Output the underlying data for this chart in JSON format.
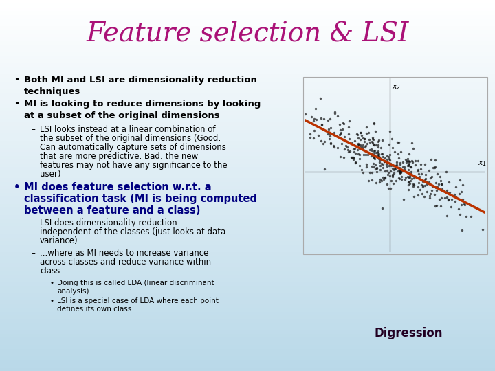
{
  "title": "Feature selection & LSI",
  "title_color": "#AA1177",
  "title_fontsize": 28,
  "bg_top": "#FFFFFF",
  "bg_bottom": "#B8D8E8",
  "bullet1": "Both MI and LSI are dimensionality reduction\ntechniques",
  "bullet2": "MI is looking to reduce dimensions by looking\nat a subset of the original dimensions",
  "sub1_line1": "LSI looks instead at a linear combination of",
  "sub1_line2": "the subset of the original dimensions (Good:",
  "sub1_line3": "Can automatically capture sets of dimensions",
  "sub1_line4": "that are more predictive. Bad: the new",
  "sub1_line5": "features may not have any significance to the",
  "sub1_line6": "user)",
  "bullet3": "MI does feature selection w.r.t. a\nclassification task (MI is being computed\nbetween a feature and a class)",
  "sub2_line1": "LSI does dimensionality reduction",
  "sub2_line2": "independent of the classes (just looks at data",
  "sub2_line3": "variance)",
  "sub3_line1": "...where as MI needs to increase variance",
  "sub3_line2": "across classes and reduce variance within",
  "sub3_line3": "class",
  "subsub1_line1": "Doing this is called LDA (linear discriminant",
  "subsub1_line2": "analysis)",
  "subsub2_line1": "LSI is a special case of LDA where each point",
  "subsub2_line2": "defines its own class",
  "digression_label": "Digression",
  "digression_bg": "#FFAAFF",
  "text_black": "#000000",
  "text_blue": "#000080",
  "scatter_line_color": "#BB3300",
  "scatter_dot_color": "#111111",
  "axis_color": "#555555"
}
